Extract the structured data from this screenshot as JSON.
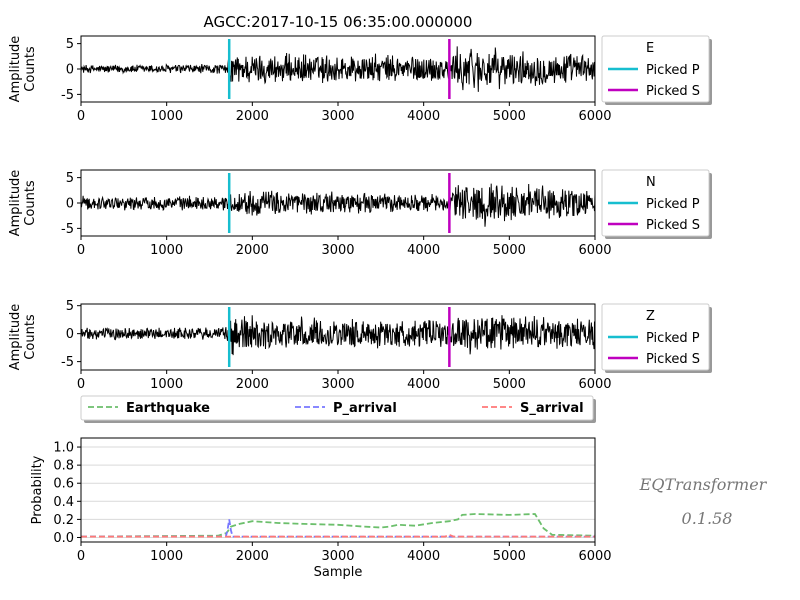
{
  "figure": {
    "title": "AGCC:2017-10-15 06:35:00.000000",
    "watermark_line1": "EQTransformer",
    "watermark_line2": "0.1.58"
  },
  "chart_data": [
    {
      "type": "line",
      "component": "E",
      "ylabel": [
        "Amplitude",
        "Counts"
      ],
      "xlim": [
        0,
        6000
      ],
      "ylim": [
        -6.5,
        6.5
      ],
      "xticks": [
        0,
        1000,
        2000,
        3000,
        4000,
        5000,
        6000
      ],
      "yticks": [
        -5,
        0,
        5
      ],
      "picked_p": 1730,
      "picked_s": 4300,
      "legend": [
        "E",
        "Picked P",
        "Picked S"
      ],
      "envelope": [
        {
          "x": 0,
          "amp": 0.9
        },
        {
          "x": 1700,
          "amp": 1.1
        },
        {
          "x": 1750,
          "amp": 3.5
        },
        {
          "x": 2100,
          "amp": 3.3
        },
        {
          "x": 4300,
          "amp": 3.0
        },
        {
          "x": 4450,
          "amp": 5.5
        },
        {
          "x": 5000,
          "amp": 3.8
        },
        {
          "x": 6000,
          "amp": 3.2
        }
      ]
    },
    {
      "type": "line",
      "component": "N",
      "ylabel": [
        "Amplitude",
        "Counts"
      ],
      "xlim": [
        0,
        6000
      ],
      "ylim": [
        -6.5,
        6.5
      ],
      "xticks": [
        0,
        1000,
        2000,
        3000,
        4000,
        5000,
        6000
      ],
      "yticks": [
        -5,
        0,
        5
      ],
      "picked_p": 1730,
      "picked_s": 4300,
      "legend": [
        "N",
        "Picked P",
        "Picked S"
      ],
      "envelope": [
        {
          "x": 0,
          "amp": 1.5
        },
        {
          "x": 1700,
          "amp": 1.5
        },
        {
          "x": 1750,
          "amp": 2.5
        },
        {
          "x": 2100,
          "amp": 2.8
        },
        {
          "x": 4300,
          "amp": 1.8
        },
        {
          "x": 4450,
          "amp": 5.3
        },
        {
          "x": 5000,
          "amp": 4.2
        },
        {
          "x": 6000,
          "amp": 3.0
        }
      ]
    },
    {
      "type": "line",
      "component": "Z",
      "ylabel": [
        "Amplitude",
        "Counts"
      ],
      "xlim": [
        0,
        6000
      ],
      "ylim": [
        -6.5,
        5.3
      ],
      "xticks": [
        0,
        1000,
        2000,
        3000,
        4000,
        5000,
        6000
      ],
      "yticks": [
        -5,
        0,
        5
      ],
      "picked_p": 1730,
      "picked_s": 4300,
      "legend": [
        "Z",
        "Picked P",
        "Picked S"
      ],
      "envelope": [
        {
          "x": 0,
          "amp": 1.2
        },
        {
          "x": 1700,
          "amp": 1.3
        },
        {
          "x": 1750,
          "amp": 4.8
        },
        {
          "x": 2100,
          "amp": 3.2
        },
        {
          "x": 4300,
          "amp": 2.6
        },
        {
          "x": 4500,
          "amp": 4.0
        },
        {
          "x": 5000,
          "amp": 3.6
        },
        {
          "x": 6000,
          "amp": 3.0
        }
      ]
    },
    {
      "type": "line",
      "xlabel": "Sample",
      "ylabel": "Probability",
      "xlim": [
        0,
        6000
      ],
      "ylim": [
        -0.05,
        1.1
      ],
      "xticks": [
        0,
        1000,
        2000,
        3000,
        4000,
        5000,
        6000
      ],
      "yticks": [
        0.0,
        0.2,
        0.4,
        0.6,
        0.8,
        1.0
      ],
      "grid": "horizontal",
      "legend_position": "top, outside",
      "series": [
        {
          "name": "Earthquake",
          "color": "#6cbf6c",
          "points": [
            [
              0,
              0.01
            ],
            [
              1600,
              0.02
            ],
            [
              1700,
              0.05
            ],
            [
              1750,
              0.12
            ],
            [
              1850,
              0.15
            ],
            [
              2000,
              0.18
            ],
            [
              2300,
              0.16
            ],
            [
              2600,
              0.15
            ],
            [
              3000,
              0.14
            ],
            [
              3300,
              0.12
            ],
            [
              3500,
              0.11
            ],
            [
              3600,
              0.12
            ],
            [
              3700,
              0.14
            ],
            [
              3900,
              0.13
            ],
            [
              4100,
              0.16
            ],
            [
              4300,
              0.18
            ],
            [
              4400,
              0.2
            ],
            [
              4450,
              0.25
            ],
            [
              4600,
              0.26
            ],
            [
              5000,
              0.25
            ],
            [
              5300,
              0.26
            ],
            [
              5400,
              0.1
            ],
            [
              5500,
              0.03
            ],
            [
              6000,
              0.02
            ]
          ]
        },
        {
          "name": "P_arrival",
          "color": "#7878ff",
          "points": [
            [
              0,
              0.01
            ],
            [
              1690,
              0.01
            ],
            [
              1710,
              0.08
            ],
            [
              1730,
              0.2
            ],
            [
              1750,
              0.08
            ],
            [
              1770,
              0.01
            ],
            [
              6000,
              0.01
            ]
          ]
        },
        {
          "name": "S_arrival",
          "color": "#ff7878",
          "points": [
            [
              0,
              0.01
            ],
            [
              4250,
              0.01
            ],
            [
              4300,
              0.03
            ],
            [
              4350,
              0.01
            ],
            [
              6000,
              0.01
            ]
          ]
        }
      ]
    }
  ]
}
